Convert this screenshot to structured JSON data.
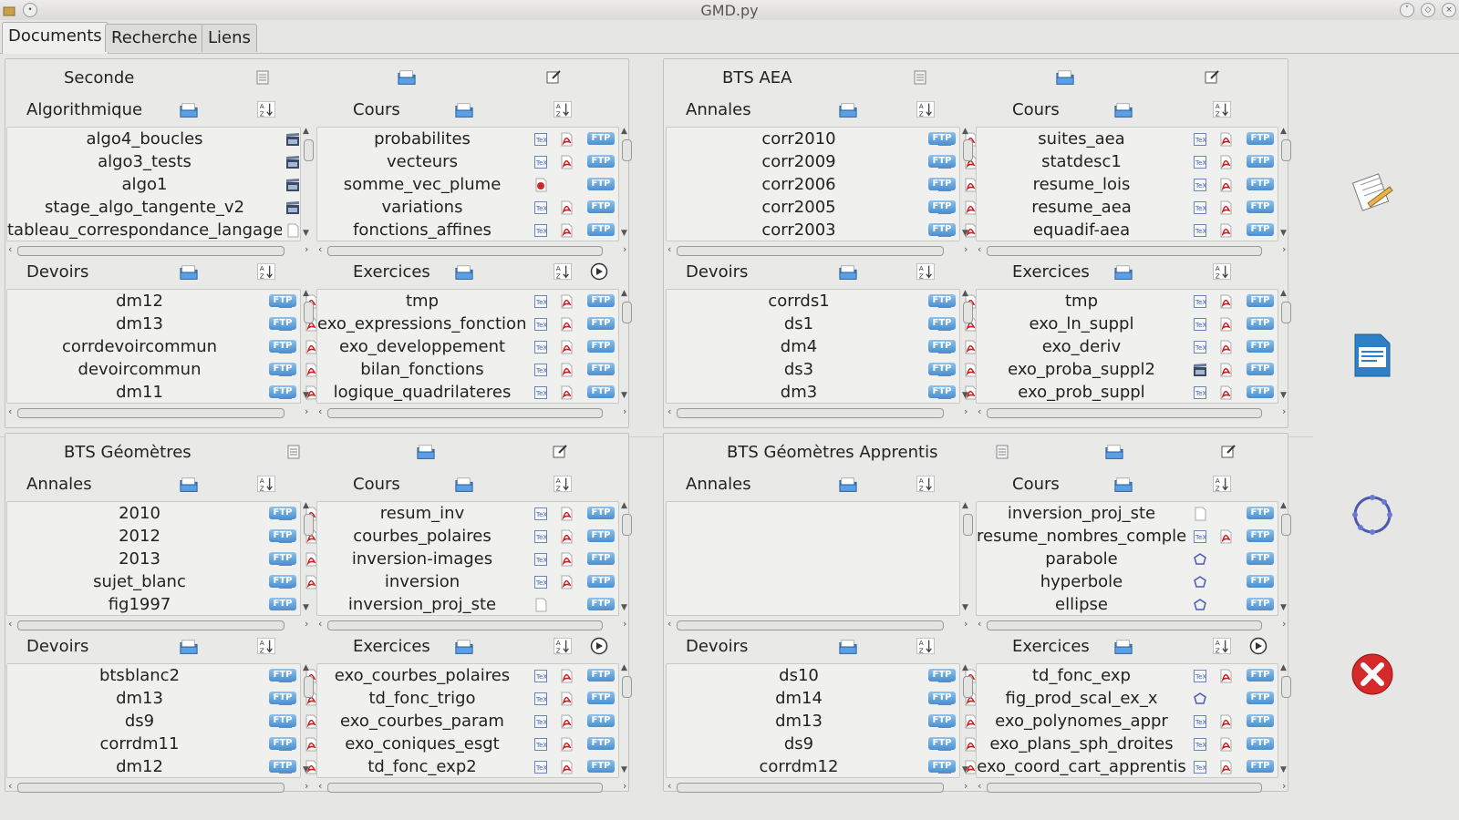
{
  "window": {
    "title": "GMD.py"
  },
  "tabs": [
    {
      "label": "Documents",
      "active": true
    },
    {
      "label": "Recherche",
      "active": false
    },
    {
      "label": "Liens",
      "active": false
    }
  ],
  "colors": {
    "ftp": "#4b8fd0",
    "pdf": "#cc1f1f",
    "close": "#d42a2a",
    "folder": "#3f87d6"
  },
  "quadrants": [
    {
      "title": "Seconde",
      "sections": [
        {
          "label": "Algorithmique",
          "play": false,
          "files": [
            {
              "name": "algo4_boucles",
              "tex": false,
              "pdf": false,
              "ftp": false,
              "kind": "clap"
            },
            {
              "name": "algo3_tests",
              "tex": false,
              "pdf": false,
              "ftp": false,
              "kind": "clap"
            },
            {
              "name": "algo1",
              "tex": false,
              "pdf": false,
              "ftp": false,
              "kind": "clap"
            },
            {
              "name": "stage_algo_tangente_v2",
              "tex": false,
              "pdf": false,
              "ftp": false,
              "kind": "clap"
            },
            {
              "name": "tableau_correspondance_langages",
              "tex": false,
              "pdf": false,
              "ftp": false,
              "kind": "doc"
            }
          ]
        },
        {
          "label": "Cours",
          "play": false,
          "files": [
            {
              "name": "probabilites",
              "tex": true,
              "pdf": true,
              "ftp": true
            },
            {
              "name": "vecteurs",
              "tex": true,
              "pdf": true,
              "ftp": true
            },
            {
              "name": "somme_vec_plume",
              "tex": false,
              "pdf": false,
              "ftp": true,
              "kind": "red"
            },
            {
              "name": "variations",
              "tex": true,
              "pdf": true,
              "ftp": true
            },
            {
              "name": "fonctions_affines",
              "tex": true,
              "pdf": true,
              "ftp": true
            }
          ]
        },
        {
          "label": "Devoirs",
          "play": false,
          "files": [
            {
              "name": "dm12",
              "tex": true,
              "pdf": true,
              "ftp": true
            },
            {
              "name": "dm13",
              "tex": true,
              "pdf": true,
              "ftp": true
            },
            {
              "name": "corrdevoircommun",
              "tex": true,
              "pdf": true,
              "ftp": true
            },
            {
              "name": "devoircommun",
              "tex": true,
              "pdf": true,
              "ftp": true
            },
            {
              "name": "dm11",
              "tex": true,
              "pdf": true,
              "ftp": true
            }
          ]
        },
        {
          "label": "Exercices",
          "play": true,
          "files": [
            {
              "name": "tmp",
              "tex": true,
              "pdf": true,
              "ftp": true
            },
            {
              "name": "exo_expressions_fonctions",
              "tex": true,
              "pdf": true,
              "ftp": true
            },
            {
              "name": "exo_developpement",
              "tex": true,
              "pdf": true,
              "ftp": true
            },
            {
              "name": "bilan_fonctions",
              "tex": true,
              "pdf": true,
              "ftp": true
            },
            {
              "name": "logique_quadrilateres",
              "tex": true,
              "pdf": true,
              "ftp": true
            }
          ]
        }
      ]
    },
    {
      "title": "BTS AEA",
      "sections": [
        {
          "label": "Annales",
          "play": false,
          "files": [
            {
              "name": "corr2010",
              "tex": true,
              "pdf": true,
              "ftp": true
            },
            {
              "name": "corr2009",
              "tex": true,
              "pdf": true,
              "ftp": true
            },
            {
              "name": "corr2006",
              "tex": true,
              "pdf": true,
              "ftp": true
            },
            {
              "name": "corr2005",
              "tex": true,
              "pdf": true,
              "ftp": true
            },
            {
              "name": "corr2003",
              "tex": true,
              "pdf": true,
              "ftp": true
            }
          ]
        },
        {
          "label": "Cours",
          "play": false,
          "files": [
            {
              "name": "suites_aea",
              "tex": true,
              "pdf": true,
              "ftp": true
            },
            {
              "name": "statdesc1",
              "tex": true,
              "pdf": true,
              "ftp": true
            },
            {
              "name": "resume_lois",
              "tex": true,
              "pdf": true,
              "ftp": true
            },
            {
              "name": "resume_aea",
              "tex": true,
              "pdf": true,
              "ftp": true
            },
            {
              "name": "equadif-aea",
              "tex": true,
              "pdf": true,
              "ftp": true
            }
          ]
        },
        {
          "label": "Devoirs",
          "play": false,
          "files": [
            {
              "name": "corrds1",
              "tex": true,
              "pdf": true,
              "ftp": true
            },
            {
              "name": "ds1",
              "tex": true,
              "pdf": true,
              "ftp": true
            },
            {
              "name": "dm4",
              "tex": true,
              "pdf": true,
              "ftp": true
            },
            {
              "name": "ds3",
              "tex": true,
              "pdf": true,
              "ftp": true
            },
            {
              "name": "dm3",
              "tex": true,
              "pdf": true,
              "ftp": true
            }
          ]
        },
        {
          "label": "Exercices",
          "play": false,
          "files": [
            {
              "name": "tmp",
              "tex": true,
              "pdf": true,
              "ftp": true
            },
            {
              "name": "exo_ln_suppl",
              "tex": true,
              "pdf": true,
              "ftp": true
            },
            {
              "name": "exo_deriv",
              "tex": true,
              "pdf": true,
              "ftp": true
            },
            {
              "name": "exo_proba_suppl2",
              "tex": false,
              "pdf": true,
              "ftp": true,
              "kind": "clap"
            },
            {
              "name": "exo_prob_suppl",
              "tex": true,
              "pdf": true,
              "ftp": true
            }
          ]
        }
      ]
    },
    {
      "title": "BTS Géomètres",
      "sections": [
        {
          "label": "Annales",
          "play": false,
          "files": [
            {
              "name": "2010",
              "tex": true,
              "pdf": true,
              "ftp": true
            },
            {
              "name": "2012",
              "tex": true,
              "pdf": true,
              "ftp": true
            },
            {
              "name": "2013",
              "tex": true,
              "pdf": true,
              "ftp": true
            },
            {
              "name": "sujet_blanc",
              "tex": true,
              "pdf": true,
              "ftp": true
            },
            {
              "name": "fig1997",
              "tex": false,
              "pdf": false,
              "ftp": true,
              "kind": "geo"
            }
          ]
        },
        {
          "label": "Cours",
          "play": false,
          "files": [
            {
              "name": "resum_inv",
              "tex": true,
              "pdf": true,
              "ftp": true
            },
            {
              "name": "courbes_polaires",
              "tex": true,
              "pdf": true,
              "ftp": true
            },
            {
              "name": "inversion-images",
              "tex": true,
              "pdf": true,
              "ftp": true
            },
            {
              "name": "inversion",
              "tex": true,
              "pdf": true,
              "ftp": true
            },
            {
              "name": "inversion_proj_ste",
              "tex": false,
              "pdf": false,
              "ftp": true,
              "kind": "doc"
            }
          ]
        },
        {
          "label": "Devoirs",
          "play": false,
          "files": [
            {
              "name": "btsblanc2",
              "tex": true,
              "pdf": true,
              "ftp": true
            },
            {
              "name": "dm13",
              "tex": true,
              "pdf": true,
              "ftp": true
            },
            {
              "name": "ds9",
              "tex": true,
              "pdf": true,
              "ftp": true
            },
            {
              "name": "corrdm11",
              "tex": true,
              "pdf": true,
              "ftp": true
            },
            {
              "name": "dm12",
              "tex": true,
              "pdf": true,
              "ftp": true
            }
          ]
        },
        {
          "label": "Exercices",
          "play": true,
          "files": [
            {
              "name": "exo_courbes_polaires",
              "tex": true,
              "pdf": true,
              "ftp": true
            },
            {
              "name": "td_fonc_trigo",
              "tex": true,
              "pdf": true,
              "ftp": true
            },
            {
              "name": "exo_courbes_param",
              "tex": true,
              "pdf": true,
              "ftp": true
            },
            {
              "name": "exo_coniques_esgt",
              "tex": true,
              "pdf": true,
              "ftp": true
            },
            {
              "name": "td_fonc_exp2",
              "tex": true,
              "pdf": true,
              "ftp": true
            }
          ]
        }
      ]
    },
    {
      "title": "BTS Géomètres Apprentis",
      "sections": [
        {
          "label": "Annales",
          "play": false,
          "files": []
        },
        {
          "label": "Cours",
          "play": false,
          "files": [
            {
              "name": "inversion_proj_ste",
              "tex": false,
              "pdf": false,
              "ftp": true,
              "kind": "doc"
            },
            {
              "name": "resume_nombres_complexes",
              "tex": true,
              "pdf": true,
              "ftp": true
            },
            {
              "name": "parabole",
              "tex": false,
              "pdf": false,
              "ftp": true,
              "kind": "geo"
            },
            {
              "name": "hyperbole",
              "tex": false,
              "pdf": false,
              "ftp": true,
              "kind": "geo"
            },
            {
              "name": "ellipse",
              "tex": false,
              "pdf": false,
              "ftp": true,
              "kind": "geo"
            }
          ]
        },
        {
          "label": "Devoirs",
          "play": false,
          "files": [
            {
              "name": "ds10",
              "tex": true,
              "pdf": true,
              "ftp": true
            },
            {
              "name": "dm14",
              "tex": true,
              "pdf": true,
              "ftp": true
            },
            {
              "name": "dm13",
              "tex": true,
              "pdf": true,
              "ftp": true
            },
            {
              "name": "ds9",
              "tex": true,
              "pdf": true,
              "ftp": true
            },
            {
              "name": "corrdm12",
              "tex": true,
              "pdf": true,
              "ftp": true
            }
          ]
        },
        {
          "label": "Exercices",
          "play": true,
          "files": [
            {
              "name": "td_fonc_exp",
              "tex": true,
              "pdf": true,
              "ftp": true
            },
            {
              "name": "fig_prod_scal_ex_x",
              "tex": false,
              "pdf": false,
              "ftp": true,
              "kind": "geo"
            },
            {
              "name": "exo_polynomes_appr",
              "tex": true,
              "pdf": true,
              "ftp": true
            },
            {
              "name": "exo_plans_sph_droites",
              "tex": true,
              "pdf": true,
              "ftp": true
            },
            {
              "name": "exo_coord_cart_apprentis",
              "tex": true,
              "pdf": true,
              "ftp": true
            }
          ]
        }
      ]
    }
  ],
  "labels": {
    "ftp": "FTP"
  },
  "sidebar": [
    {
      "icon": "notepad-edit-icon"
    },
    {
      "icon": "writer-document-icon"
    },
    {
      "icon": "refresh-circle-icon"
    },
    {
      "icon": "close-red-icon"
    }
  ]
}
